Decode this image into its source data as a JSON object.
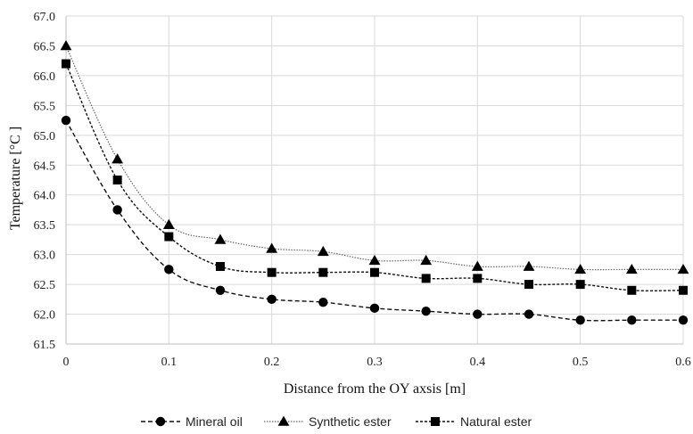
{
  "chart_data": {
    "type": "line",
    "title": "",
    "xlabel": "Distance from the OY axsis [m]",
    "ylabel": "Temperature [°C ]",
    "xlim": [
      0,
      0.6
    ],
    "ylim": [
      61.5,
      67.0
    ],
    "x_ticks": [
      "0",
      "0.1",
      "0.2",
      "0.3",
      "0.4",
      "0.5",
      "0.6"
    ],
    "y_ticks": [
      "61.5",
      "62.0",
      "62.5",
      "63.0",
      "63.5",
      "64.0",
      "64.5",
      "65.0",
      "65.5",
      "66.0",
      "66.5",
      "67.0"
    ],
    "grid": true,
    "legend_position": "bottom",
    "x": [
      0,
      0.05,
      0.1,
      0.15,
      0.2,
      0.25,
      0.3,
      0.35,
      0.4,
      0.45,
      0.5,
      0.55,
      0.6
    ],
    "series": [
      {
        "name": "Mineral oil",
        "marker": "circle",
        "line_style": "dashed",
        "color": "#000000",
        "values": [
          65.25,
          63.75,
          62.75,
          62.4,
          62.25,
          62.2,
          62.1,
          62.05,
          62.0,
          62.0,
          61.9,
          61.9,
          61.9
        ]
      },
      {
        "name": "Synthetic ester",
        "marker": "triangle",
        "line_style": "dotted",
        "color": "#000000",
        "values": [
          66.5,
          64.6,
          63.5,
          63.25,
          63.1,
          63.05,
          62.9,
          62.9,
          62.8,
          62.8,
          62.75,
          62.75,
          62.75
        ]
      },
      {
        "name": "Natural ester",
        "marker": "square",
        "line_style": "dashdot",
        "color": "#000000",
        "values": [
          66.2,
          64.25,
          63.3,
          62.8,
          62.7,
          62.7,
          62.7,
          62.6,
          62.6,
          62.5,
          62.5,
          62.4,
          62.4
        ]
      }
    ]
  }
}
